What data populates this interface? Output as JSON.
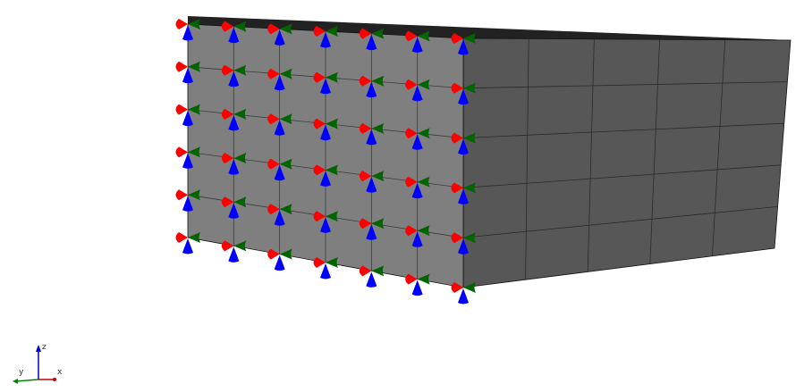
{
  "model": {
    "face_color": "#7f7f7f",
    "side_color": "#575757",
    "top_color": "#222222",
    "edge_color": "#111111",
    "front_face_divisions": {
      "columns": 6,
      "rows": 5
    },
    "side_face_divisions": {
      "columns": 5,
      "rows": 5
    }
  },
  "boundary_conditions": {
    "constrained_face": "front",
    "glyph_colors": {
      "x": "#ff0000",
      "y": "#006400",
      "z": "#0000ff"
    }
  },
  "triad": {
    "labels": {
      "x": "x",
      "y": "y",
      "z": "z"
    },
    "colors": {
      "x": "#cc0000",
      "y": "#008800",
      "z": "#0000cc"
    }
  }
}
